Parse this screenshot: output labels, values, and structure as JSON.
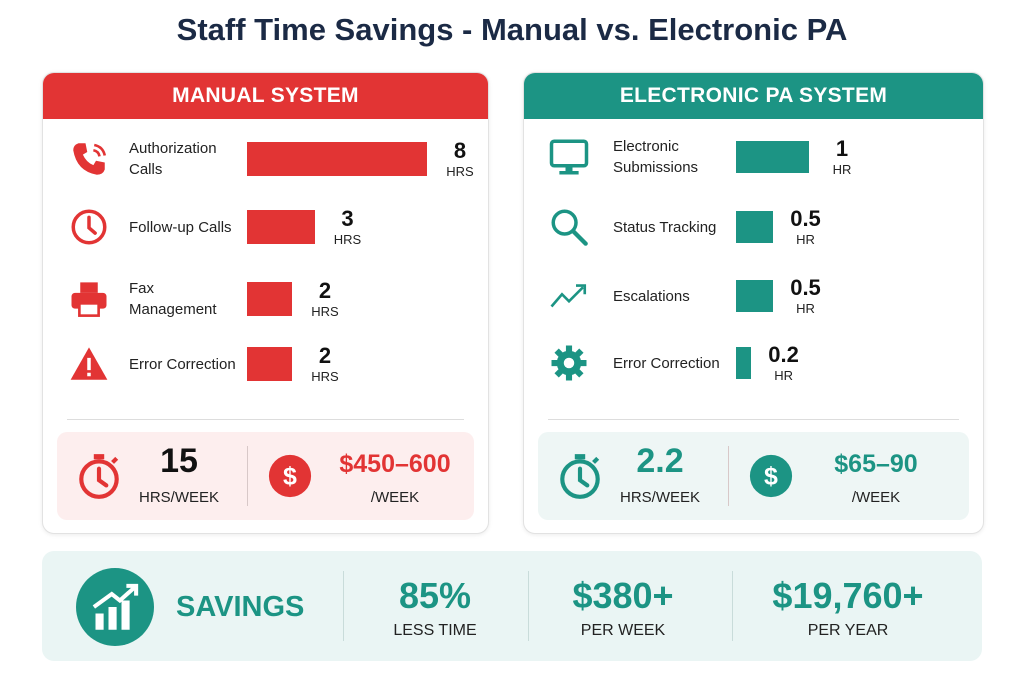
{
  "title": "Staff Time Savings - Manual vs. Electronic PA",
  "panels": [
    {
      "header": "MANUAL SYSTEM",
      "color": "#e23434",
      "tint": "#fdeeee",
      "items": [
        {
          "label": "Authorization Calls",
          "value": 8,
          "unit": "HRS"
        },
        {
          "label": "Follow-up Calls",
          "value": 3,
          "unit": "HRS"
        },
        {
          "label": "Fax Management",
          "value": 2,
          "unit": "HRS"
        },
        {
          "label": "Error Correction",
          "value": 2,
          "unit": "HRS"
        }
      ],
      "total": {
        "value": 15,
        "unit": "HRS/WEEK"
      },
      "cost": {
        "value": "$450–600",
        "unit": "/WEEK"
      }
    },
    {
      "header": "ELECTRONIC PA SYSTEM",
      "color": "#1c9484",
      "tint": "#eef6f5",
      "items": [
        {
          "label": "Electronic Submissions",
          "value": 1,
          "unit": "HR"
        },
        {
          "label": "Status Tracking",
          "value": 0.5,
          "unit": "HR"
        },
        {
          "label": "Escalations",
          "value": 0.5,
          "unit": "HR"
        },
        {
          "label": "Error Correction",
          "value": 0.2,
          "unit": "HR"
        }
      ],
      "total": {
        "value": 2.2,
        "unit": "HRS/WEEK"
      },
      "cost": {
        "value": "$65–90",
        "unit": "/WEEK"
      }
    }
  ],
  "savings": {
    "label": "SAVINGS",
    "stats": [
      {
        "value": "85%",
        "label": "LESS TIME"
      },
      {
        "value": "$380+",
        "label": "PER WEEK"
      },
      {
        "value": "$19,760+",
        "label": "PER YEAR"
      }
    ]
  }
}
